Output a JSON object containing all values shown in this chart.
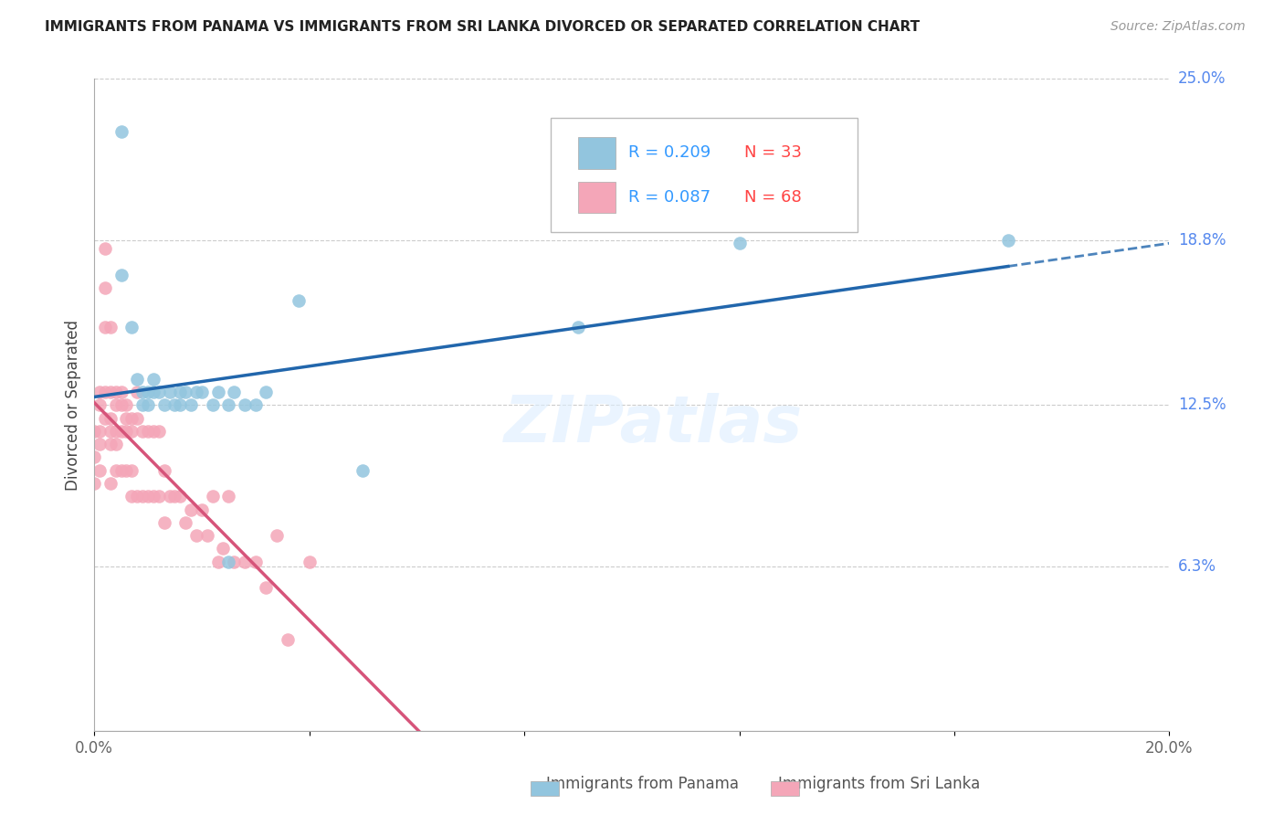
{
  "title": "IMMIGRANTS FROM PANAMA VS IMMIGRANTS FROM SRI LANKA DIVORCED OR SEPARATED CORRELATION CHART",
  "source_text": "Source: ZipAtlas.com",
  "ylabel_label": "Divorced or Separated",
  "xlim": [
    0.0,
    0.2
  ],
  "ylim": [
    0.0,
    0.25
  ],
  "ytick_labels_right": [
    "25.0%",
    "18.8%",
    "12.5%",
    "6.3%"
  ],
  "ytick_values_right": [
    0.25,
    0.188,
    0.125,
    0.063
  ],
  "legend_blue_label": "Immigrants from Panama",
  "legend_pink_label": "Immigrants from Sri Lanka",
  "R_blue": 0.209,
  "N_blue": 33,
  "R_pink": 0.087,
  "N_pink": 68,
  "blue_color": "#92c5de",
  "pink_color": "#f4a6b8",
  "line_blue_color": "#2166ac",
  "line_pink_color": "#d6547a",
  "watermark_text": "ZIPatlas",
  "blue_points_x": [
    0.005,
    0.005,
    0.007,
    0.008,
    0.009,
    0.009,
    0.01,
    0.01,
    0.011,
    0.011,
    0.012,
    0.013,
    0.014,
    0.015,
    0.016,
    0.016,
    0.017,
    0.018,
    0.019,
    0.02,
    0.022,
    0.023,
    0.025,
    0.026,
    0.028,
    0.03,
    0.032,
    0.038,
    0.05,
    0.09,
    0.12,
    0.17,
    0.025
  ],
  "blue_points_y": [
    0.23,
    0.175,
    0.155,
    0.135,
    0.13,
    0.125,
    0.13,
    0.125,
    0.135,
    0.13,
    0.13,
    0.125,
    0.13,
    0.125,
    0.125,
    0.13,
    0.13,
    0.125,
    0.13,
    0.13,
    0.125,
    0.13,
    0.125,
    0.13,
    0.125,
    0.125,
    0.13,
    0.165,
    0.1,
    0.155,
    0.187,
    0.188,
    0.065
  ],
  "pink_points_x": [
    0.0,
    0.0,
    0.0,
    0.001,
    0.001,
    0.001,
    0.001,
    0.001,
    0.002,
    0.002,
    0.002,
    0.002,
    0.002,
    0.003,
    0.003,
    0.003,
    0.003,
    0.003,
    0.003,
    0.004,
    0.004,
    0.004,
    0.004,
    0.004,
    0.005,
    0.005,
    0.005,
    0.005,
    0.006,
    0.006,
    0.006,
    0.006,
    0.007,
    0.007,
    0.007,
    0.007,
    0.008,
    0.008,
    0.008,
    0.009,
    0.009,
    0.01,
    0.01,
    0.011,
    0.011,
    0.012,
    0.012,
    0.013,
    0.013,
    0.014,
    0.015,
    0.016,
    0.017,
    0.018,
    0.019,
    0.02,
    0.021,
    0.022,
    0.023,
    0.024,
    0.025,
    0.026,
    0.028,
    0.03,
    0.032,
    0.034,
    0.036,
    0.04
  ],
  "pink_points_y": [
    0.115,
    0.105,
    0.095,
    0.13,
    0.125,
    0.115,
    0.11,
    0.1,
    0.185,
    0.17,
    0.155,
    0.13,
    0.12,
    0.155,
    0.13,
    0.12,
    0.115,
    0.11,
    0.095,
    0.13,
    0.125,
    0.115,
    0.11,
    0.1,
    0.13,
    0.125,
    0.115,
    0.1,
    0.125,
    0.12,
    0.115,
    0.1,
    0.12,
    0.115,
    0.1,
    0.09,
    0.13,
    0.12,
    0.09,
    0.115,
    0.09,
    0.115,
    0.09,
    0.115,
    0.09,
    0.115,
    0.09,
    0.1,
    0.08,
    0.09,
    0.09,
    0.09,
    0.08,
    0.085,
    0.075,
    0.085,
    0.075,
    0.09,
    0.065,
    0.07,
    0.09,
    0.065,
    0.065,
    0.065,
    0.055,
    0.075,
    0.035,
    0.065
  ]
}
